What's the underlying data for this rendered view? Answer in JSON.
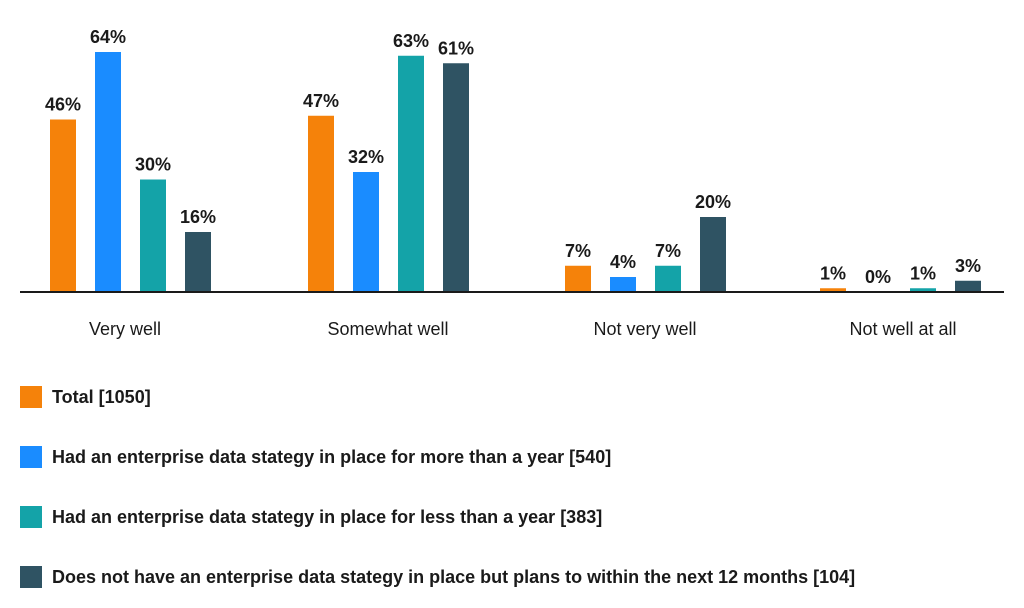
{
  "chart_data": {
    "type": "bar",
    "categories": [
      "Very well",
      "Somewhat well",
      "Not very well",
      "Not well at all"
    ],
    "series": [
      {
        "name": "Total [1050]",
        "color": "#f5820a",
        "values": [
          46,
          47,
          7,
          1
        ]
      },
      {
        "name": "Had an enterprise data stategy in place for more than a year [540]",
        "color": "#1a8cff",
        "values": [
          64,
          32,
          4,
          0
        ]
      },
      {
        "name": "Had an enterprise data stategy in place for less than a year [383]",
        "color": "#14a3a8",
        "values": [
          30,
          63,
          7,
          1
        ]
      },
      {
        "name": "Does not have an enterprise data stategy in place but plans to within the next 12 months [104]",
        "color": "#2f5363",
        "values": [
          16,
          61,
          20,
          3
        ]
      }
    ],
    "value_suffix": "%",
    "ylim": [
      0,
      64
    ],
    "grid": false,
    "legend_position": "bottom"
  }
}
